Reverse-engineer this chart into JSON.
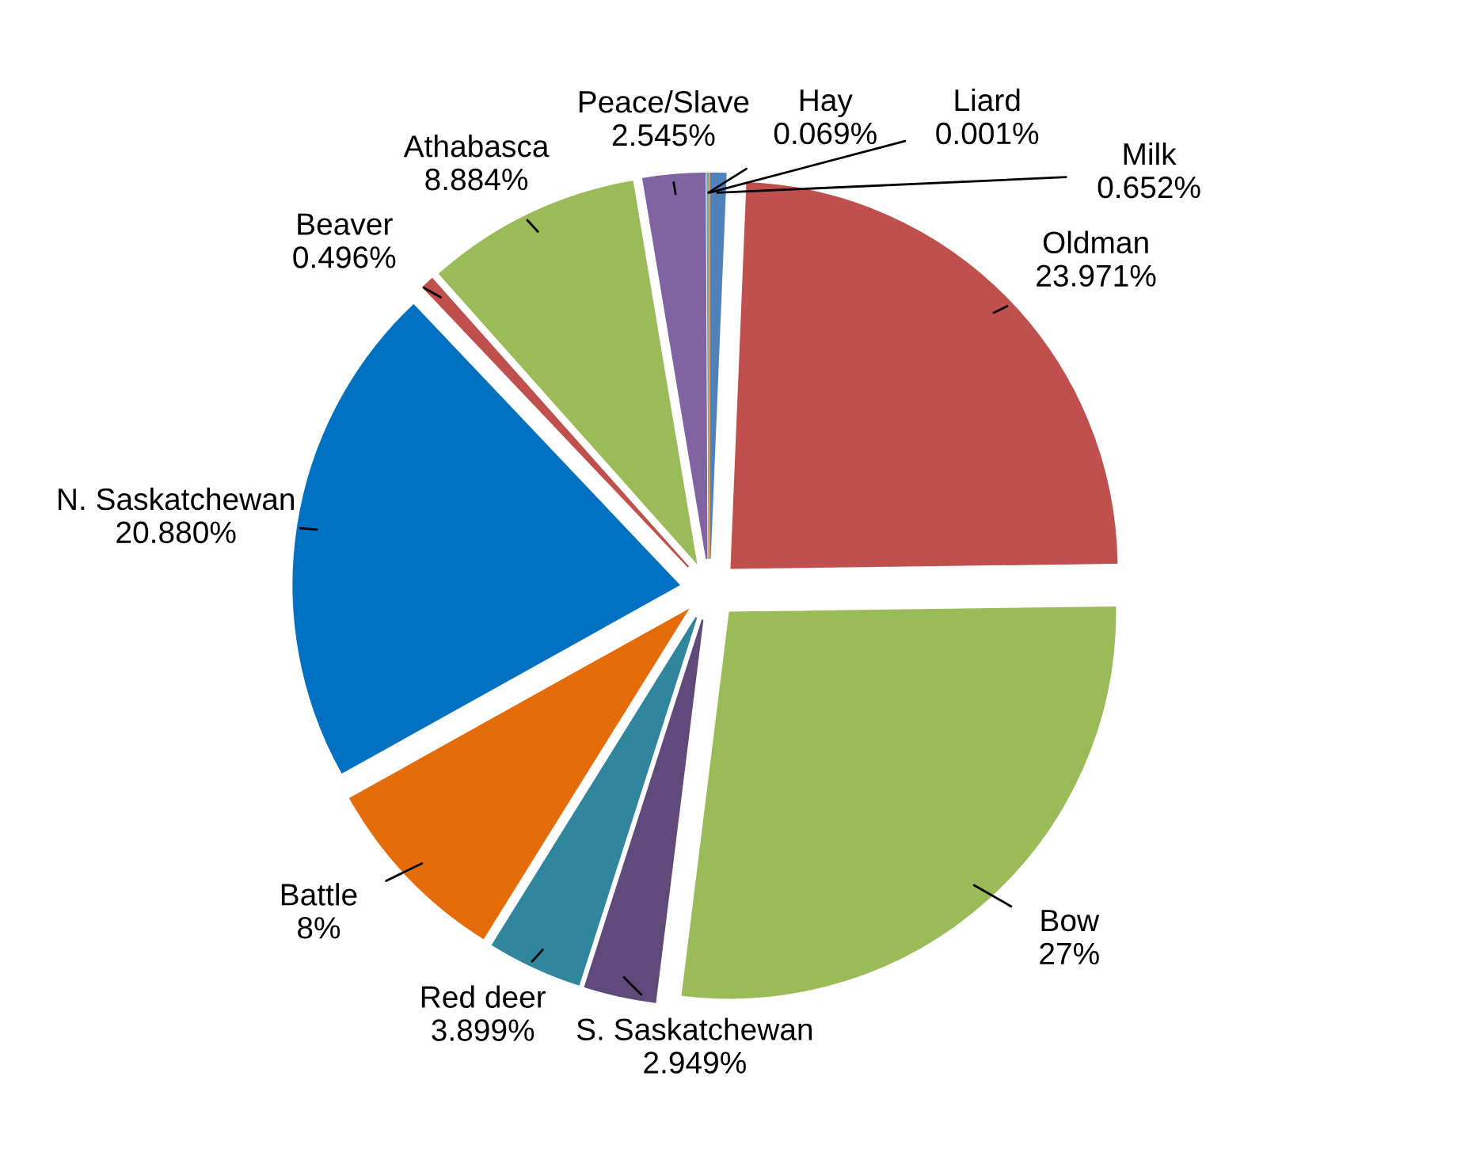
{
  "chart_data": {
    "type": "pie",
    "categories": [
      "Milk",
      "Oldman",
      "Bow",
      "S. Saskatchewan",
      "Red deer",
      "Battle",
      "N. Saskatchewan",
      "Beaver",
      "Athabasca",
      "Peace/Slave",
      "Hay",
      "Liard"
    ],
    "values": [
      0.652,
      23.971,
      27,
      2.949,
      3.899,
      8,
      20.88,
      0.496,
      8.884,
      2.545,
      0.069,
      0.001
    ],
    "value_labels": [
      "0.652%",
      "23.971%",
      "27%",
      "2.949%",
      "3.899%",
      "8%",
      "20.880%",
      "0.496%",
      "8.884%",
      "2.545%",
      "0.069%",
      "0.001%"
    ],
    "colors": [
      "#4f81bd",
      "#c0504d",
      "#9bbb59",
      "#604a7b",
      "#31859c",
      "#e46c0a",
      "#0070c0",
      "#c0504d",
      "#9bbb59",
      "#8064a2",
      "#4bacc6",
      "#f79646"
    ],
    "legend": false
  }
}
